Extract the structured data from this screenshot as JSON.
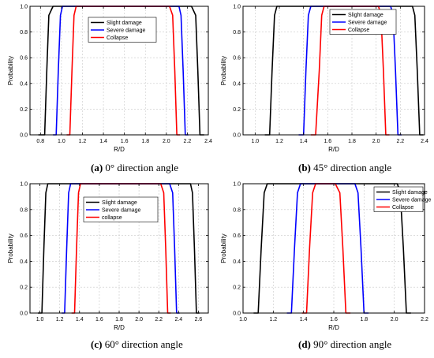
{
  "chart_data": [
    {
      "type": "line",
      "panel": "a",
      "caption_label": "(a)",
      "caption_text": "0° direction angle",
      "xlabel": "R/D",
      "ylabel": "Probability",
      "xlim": [
        0.7,
        2.4
      ],
      "ylim": [
        0,
        1.0
      ],
      "xticks": [
        0.8,
        1.0,
        1.2,
        1.4,
        1.6,
        1.8,
        2.0,
        2.2,
        2.4
      ],
      "yticks": [
        0.0,
        0.2,
        0.4,
        0.6,
        0.8,
        1.0
      ],
      "legend_position": "top-right",
      "grid": true,
      "series": [
        {
          "name": "Slight damage",
          "color": "#000000",
          "x": [
            0.78,
            0.84,
            0.86,
            0.88,
            0.92,
            2.24,
            2.28,
            2.3,
            2.32,
            2.36
          ],
          "y": [
            0,
            0,
            0.5,
            0.93,
            1,
            1,
            0.93,
            0.5,
            0,
            0
          ]
        },
        {
          "name": "Severe damage",
          "color": "#0000ff",
          "x": [
            0.92,
            0.95,
            0.97,
            0.99,
            1.01,
            2.12,
            2.14,
            2.16,
            2.18,
            2.21
          ],
          "y": [
            0,
            0,
            0.5,
            0.93,
            1,
            1,
            0.93,
            0.5,
            0,
            0
          ]
        },
        {
          "name": "Collapse",
          "color": "#ff0000",
          "x": [
            1.05,
            1.08,
            1.1,
            1.12,
            1.14,
            2.03,
            2.06,
            2.08,
            2.1,
            2.13
          ],
          "y": [
            0,
            0,
            0.5,
            0.93,
            1,
            1,
            0.93,
            0.5,
            0,
            0
          ]
        }
      ]
    },
    {
      "type": "line",
      "panel": "b",
      "caption_label": "(b)",
      "caption_text": "45° direction angle",
      "xlabel": "R/D",
      "ylabel": "Probability",
      "xlim": [
        0.9,
        2.4
      ],
      "ylim": [
        0,
        1.0
      ],
      "xticks": [
        1.0,
        1.2,
        1.4,
        1.6,
        1.8,
        2.0,
        2.2,
        2.4
      ],
      "yticks": [
        0.0,
        0.2,
        0.4,
        0.6,
        0.8,
        1.0
      ],
      "legend_position": "top-right",
      "grid": true,
      "series": [
        {
          "name": "Slight damage",
          "color": "#000000",
          "x": [
            1.08,
            1.12,
            1.14,
            1.16,
            1.18,
            2.3,
            2.32,
            2.34,
            2.36,
            2.39
          ],
          "y": [
            0,
            0,
            0.5,
            0.93,
            1,
            1,
            0.93,
            0.5,
            0,
            0
          ]
        },
        {
          "name": "Severe damage",
          "color": "#0000ff",
          "x": [
            1.36,
            1.4,
            1.42,
            1.44,
            1.46,
            2.12,
            2.14,
            2.16,
            2.18,
            2.21
          ],
          "y": [
            0,
            0,
            0.5,
            0.93,
            1,
            1,
            0.93,
            0.5,
            0,
            0
          ]
        },
        {
          "name": "Collapse",
          "color": "#ff0000",
          "x": [
            1.46,
            1.5,
            1.53,
            1.55,
            1.57,
            2.02,
            2.04,
            2.06,
            2.08,
            2.11
          ],
          "y": [
            0,
            0,
            0.5,
            0.93,
            1,
            1,
            0.93,
            0.5,
            0,
            0
          ]
        }
      ]
    },
    {
      "type": "line",
      "panel": "c",
      "caption_label": "(c)",
      "caption_text": "60° direction angle",
      "xlabel": "R/D",
      "ylabel": "Probability",
      "xlim": [
        0.9,
        2.7
      ],
      "ylim": [
        0,
        1.0
      ],
      "xticks": [
        1.0,
        1.2,
        1.4,
        1.6,
        1.8,
        2.0,
        2.2,
        2.4,
        2.6
      ],
      "yticks": [
        0.0,
        0.2,
        0.4,
        0.6,
        0.8,
        1.0
      ],
      "legend_position": "top-center",
      "grid": true,
      "series": [
        {
          "name": "Slight damage",
          "color": "#000000",
          "x": [
            0.98,
            1.02,
            1.04,
            1.06,
            1.08,
            2.52,
            2.54,
            2.56,
            2.58,
            2.61
          ],
          "y": [
            0,
            0,
            0.5,
            0.93,
            1,
            1,
            0.93,
            0.5,
            0,
            0
          ]
        },
        {
          "name": "Severe damage",
          "color": "#0000ff",
          "x": [
            1.22,
            1.25,
            1.27,
            1.29,
            1.31,
            2.31,
            2.34,
            2.36,
            2.38,
            2.41
          ],
          "y": [
            0,
            0,
            0.5,
            0.93,
            1,
            1,
            0.93,
            0.5,
            0,
            0
          ]
        },
        {
          "name": "collapse",
          "color": "#ff0000",
          "x": [
            1.32,
            1.35,
            1.37,
            1.39,
            1.41,
            2.22,
            2.25,
            2.27,
            2.29,
            2.32
          ],
          "y": [
            0,
            0,
            0.5,
            0.93,
            1,
            1,
            0.93,
            0.5,
            0,
            0
          ]
        }
      ]
    },
    {
      "type": "line",
      "panel": "d",
      "caption_label": "(d)",
      "caption_text": "90° direction angle",
      "xlabel": "R/D",
      "ylabel": "Probability",
      "xlim": [
        1.0,
        2.2
      ],
      "ylim": [
        0,
        1.0
      ],
      "xticks": [
        1.0,
        1.2,
        1.4,
        1.6,
        1.8,
        2.0,
        2.2
      ],
      "yticks": [
        0.0,
        0.2,
        0.4,
        0.6,
        0.8,
        1.0
      ],
      "legend_position": "top-right",
      "grid": true,
      "series": [
        {
          "name": "Slight damage",
          "color": "#000000",
          "x": [
            1.07,
            1.1,
            1.12,
            1.14,
            1.16,
            2.02,
            2.04,
            2.06,
            2.08,
            2.11
          ],
          "y": [
            0,
            0,
            0.5,
            0.93,
            1,
            1,
            0.93,
            0.5,
            0,
            0
          ]
        },
        {
          "name": "Severe damage",
          "color": "#0000ff",
          "x": [
            1.29,
            1.32,
            1.34,
            1.36,
            1.38,
            1.74,
            1.76,
            1.78,
            1.8,
            1.83
          ],
          "y": [
            0,
            0,
            0.5,
            0.93,
            1,
            1,
            0.93,
            0.5,
            0,
            0
          ]
        },
        {
          "name": "Collapse",
          "color": "#ff0000",
          "x": [
            1.39,
            1.42,
            1.44,
            1.46,
            1.48,
            1.61,
            1.64,
            1.66,
            1.68,
            1.71
          ],
          "y": [
            0,
            0,
            0.5,
            0.93,
            1,
            1,
            0.93,
            0.5,
            0,
            0
          ]
        }
      ]
    }
  ]
}
